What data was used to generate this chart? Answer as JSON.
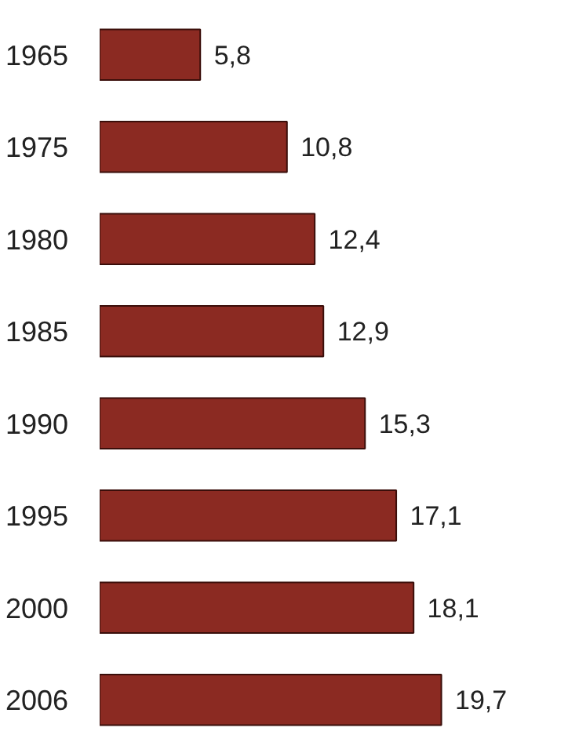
{
  "chart_data": {
    "type": "bar",
    "orientation": "horizontal",
    "categories": [
      "1965",
      "1975",
      "1980",
      "1985",
      "1990",
      "1995",
      "2000",
      "2006"
    ],
    "values": [
      5.8,
      10.8,
      12.4,
      12.9,
      15.3,
      17.1,
      18.1,
      19.7
    ],
    "value_labels": [
      "5,8",
      "10,8",
      "12,4",
      "12,9",
      "15,3",
      "17,1",
      "18,1",
      "19,7"
    ],
    "color": "#8b2a22",
    "grid": false
  }
}
